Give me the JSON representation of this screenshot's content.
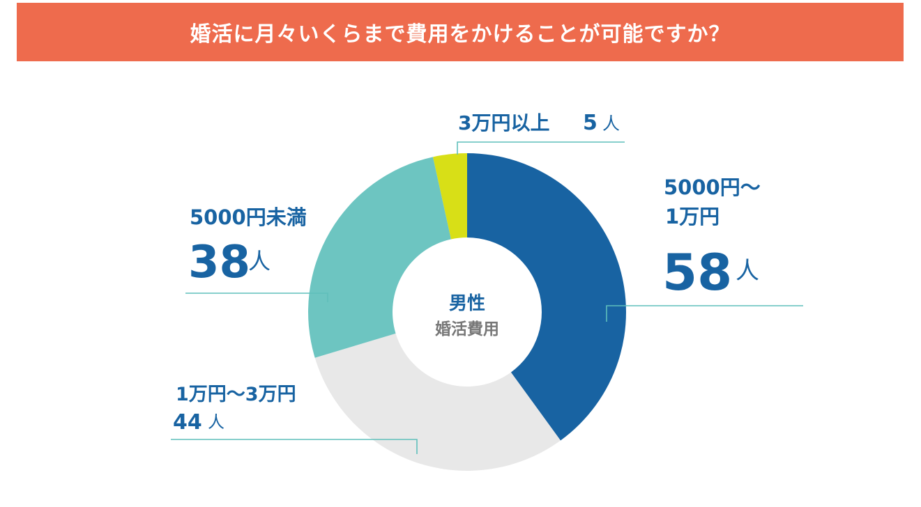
{
  "header": {
    "title": "婚活に月々いくらまで費用をかけることが可能ですか？"
  },
  "chart_data": {
    "type": "pie",
    "variant": "donut",
    "title": "婚活に月々いくらまで費用をかけることが可能ですか？",
    "center_label": {
      "line1": "男性",
      "line2": "婚活費用"
    },
    "unit": "人",
    "slices": [
      {
        "category_lines": [
          "5000円〜",
          "1万円"
        ],
        "value": 58,
        "value_label": "58",
        "unit_label": "人",
        "color": "#1863a2"
      },
      {
        "category_lines": [
          "1万円〜3万円"
        ],
        "value": 44,
        "value_label": "44",
        "unit_label": "人",
        "color": "#e8e8e8"
      },
      {
        "category_lines": [
          "5000円未満"
        ],
        "value": 38,
        "value_label": "38",
        "unit_label": "人",
        "color": "#6dc5c1"
      },
      {
        "category_lines": [
          "3万円以上"
        ],
        "value": 5,
        "value_label": "5",
        "unit_label": "人",
        "color": "#d8df17"
      }
    ],
    "colors": {
      "text": "#1863a2",
      "center_line2": "#777777",
      "leader": "#5fbfbb",
      "center_line1": "#1863a2"
    }
  }
}
